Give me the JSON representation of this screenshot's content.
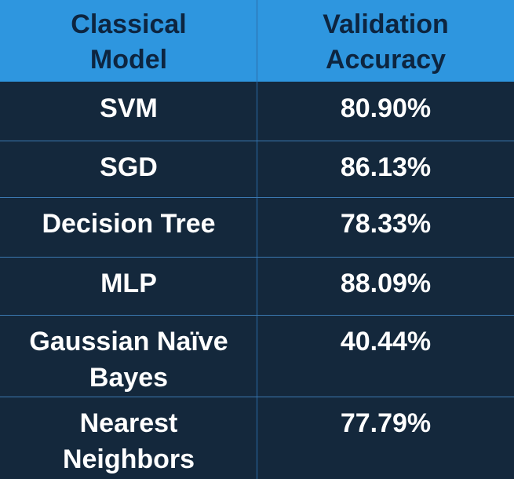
{
  "header": {
    "col1_line1": "Classical",
    "col1_line2": "Model",
    "col2_line1": "Validation",
    "col2_line2": "Accuracy"
  },
  "rows": [
    {
      "model": [
        "SVM"
      ],
      "accuracy": "80.90%"
    },
    {
      "model": [
        "SGD"
      ],
      "accuracy": "86.13%"
    },
    {
      "model": [
        "Decision Tree"
      ],
      "accuracy": "78.33%"
    },
    {
      "model": [
        "MLP"
      ],
      "accuracy": "88.09%"
    },
    {
      "model": [
        "Gaussian Naïve",
        "Bayes"
      ],
      "accuracy": "40.44%"
    },
    {
      "model": [
        "Nearest",
        "Neighbors"
      ],
      "accuracy": "77.79%"
    }
  ]
}
